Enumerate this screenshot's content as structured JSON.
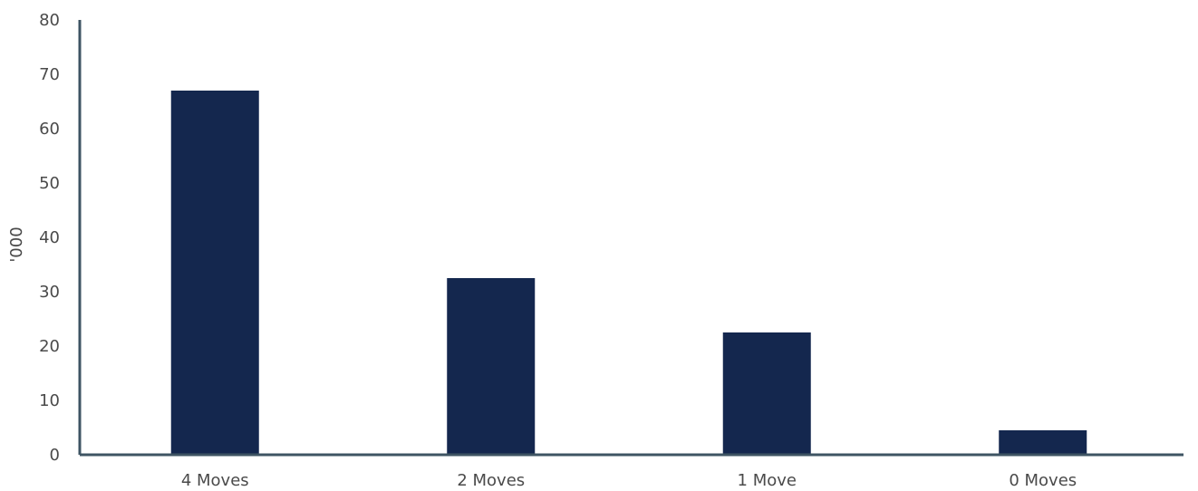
{
  "chart_data": {
    "type": "bar",
    "categories": [
      "4 Moves",
      "2 Moves",
      "1 Move",
      "0 Moves"
    ],
    "values": [
      67,
      32.5,
      22.5,
      4.5
    ],
    "title": "",
    "xlabel": "",
    "ylabel": "'000",
    "ylim": [
      0,
      80
    ],
    "yticks": [
      "0",
      "10",
      "20",
      "30",
      "40",
      "50",
      "60",
      "70",
      "80"
    ],
    "grid": false,
    "legend": "none",
    "colors": {
      "bar": "#14274e",
      "axis": "#3e5463",
      "text": "#4a4a4a"
    }
  }
}
